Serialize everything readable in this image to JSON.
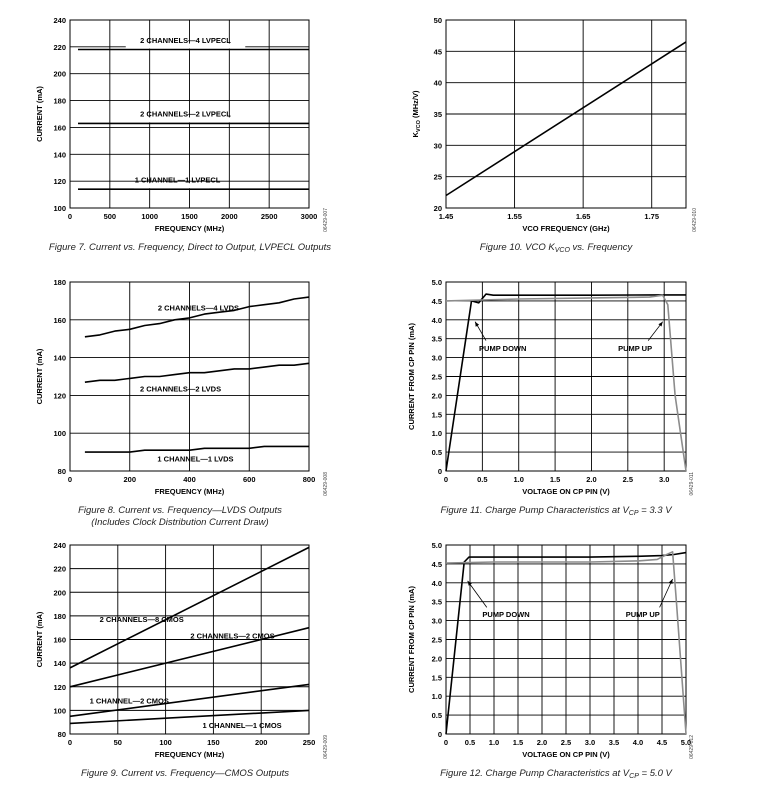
{
  "chart_data": [
    {
      "type": "line",
      "title": "Figure 7. Current vs. Frequency, Direct to Output, LVPECL Outputs",
      "xlabel": "FREQUENCY (MHz)",
      "ylabel": "CURRENT (mA)",
      "xlim": [
        0,
        3000
      ],
      "ylim": [
        100,
        240
      ],
      "xticks": [
        "0",
        "500",
        "1000",
        "1500",
        "2000",
        "2500",
        "3000"
      ],
      "yticks": [
        "100",
        "120",
        "140",
        "160",
        "180",
        "200",
        "220",
        "240"
      ],
      "code": "06429-007",
      "series": [
        {
          "name": "2 CHANNELS—4 LVPECL",
          "x": [
            100,
            3000
          ],
          "y": [
            218,
            218
          ],
          "color": "#000000"
        },
        {
          "name": "2 CHANNELS—2 LVPECL",
          "x": [
            100,
            3000
          ],
          "y": [
            163,
            163
          ],
          "color": "#000000"
        },
        {
          "name": "1 CHANNEL—1 LVPECL",
          "x": [
            100,
            3000
          ],
          "y": [
            114,
            114
          ],
          "color": "#000000"
        }
      ]
    },
    {
      "type": "line",
      "title": "Figure 10. VCO K",
      "title_sub": "VCO",
      "title_tail": " vs. Frequency",
      "xlabel": "VCO FREQUENCY (GHz)",
      "ylabel": "K",
      "ylabel_sub": "VCO",
      "ylabel_tail": " (MHz/V)",
      "xlim": [
        1.45,
        1.8
      ],
      "ylim": [
        20,
        50
      ],
      "xticks": [
        "1.45",
        "1.55",
        "1.65",
        "1.75"
      ],
      "yticks": [
        "20",
        "25",
        "30",
        "35",
        "40",
        "45",
        "50"
      ],
      "code": "06429-010",
      "series": [
        {
          "name": "KVCO",
          "x": [
            1.45,
            1.8
          ],
          "y": [
            22,
            46.5
          ],
          "color": "#000000"
        }
      ]
    },
    {
      "type": "line",
      "title": "Figure 8. Current vs. Frequency—LVDS Outputs",
      "title2": "(Includes Clock Distribution Current Draw)",
      "xlabel": "FREQUENCY (MHz)",
      "ylabel": "CURRENT (mA)",
      "xlim": [
        0,
        800
      ],
      "ylim": [
        80,
        180
      ],
      "xticks": [
        "0",
        "200",
        "400",
        "600",
        "800"
      ],
      "yticks": [
        "80",
        "100",
        "120",
        "140",
        "160",
        "180"
      ],
      "code": "06429-008",
      "series": [
        {
          "name": "2 CHANNELS—4 LVDS",
          "x": [
            50,
            100,
            150,
            200,
            250,
            300,
            350,
            400,
            450,
            500,
            550,
            600,
            650,
            700,
            750,
            800
          ],
          "y": [
            151,
            152,
            154,
            155,
            157,
            158,
            160,
            161,
            163,
            164,
            165,
            167,
            168,
            169,
            171,
            172
          ],
          "color": "#000000"
        },
        {
          "name": "2 CHANNELS—2 LVDS",
          "x": [
            50,
            100,
            150,
            200,
            250,
            300,
            350,
            400,
            450,
            500,
            550,
            600,
            650,
            700,
            750,
            800
          ],
          "y": [
            127,
            128,
            128,
            129,
            130,
            130,
            131,
            132,
            132,
            133,
            134,
            134,
            135,
            136,
            136,
            137
          ],
          "color": "#000000"
        },
        {
          "name": "1 CHANNEL—1 LVDS",
          "x": [
            50,
            100,
            150,
            200,
            250,
            300,
            350,
            400,
            450,
            500,
            550,
            600,
            650,
            700,
            750,
            800
          ],
          "y": [
            90,
            90,
            90,
            90,
            91,
            91,
            91,
            91,
            92,
            92,
            92,
            92,
            93,
            93,
            93,
            93
          ],
          "color": "#000000"
        }
      ]
    },
    {
      "type": "line",
      "title": "Figure 11. Charge Pump Characteristics at V",
      "title_sub": "CP",
      "title_tail": " = 3.3 V",
      "xlabel": "VOLTAGE ON CP PIN (V)",
      "ylabel": "CURRENT FROM CP PIN (mA)",
      "xlim": [
        0,
        3.3
      ],
      "ylim": [
        0,
        5.0
      ],
      "xticks": [
        "0",
        "0.5",
        "1.0",
        "1.5",
        "2.0",
        "2.5",
        "3.0"
      ],
      "yticks": [
        "0",
        "0.5",
        "1.0",
        "1.5",
        "2.0",
        "2.5",
        "3.0",
        "3.5",
        "4.0",
        "4.5",
        "5.0"
      ],
      "code": "06429-011",
      "annotations": [
        "PUMP DOWN",
        "PUMP UP"
      ],
      "series": [
        {
          "name": "PUMP DOWN",
          "x": [
            0,
            0.35,
            0.45,
            0.55,
            0.65,
            1.0,
            2.0,
            2.9,
            3.3
          ],
          "y": [
            0,
            4.5,
            4.45,
            4.68,
            4.65,
            4.65,
            4.65,
            4.66,
            4.66
          ],
          "color": "#000000"
        },
        {
          "name": "PUMP UP",
          "x": [
            0,
            1.0,
            2.0,
            2.8,
            2.98,
            3.05,
            3.15,
            3.3
          ],
          "y": [
            4.5,
            4.55,
            4.58,
            4.6,
            4.65,
            4.4,
            2.0,
            0
          ],
          "color": "#8c8c8c"
        }
      ]
    },
    {
      "type": "line",
      "title": "Figure 9. Current vs. Frequency—CMOS Outputs",
      "xlabel": "FREQUENCY (MHz)",
      "ylabel": "CURRENT (mA)",
      "xlim": [
        0,
        250
      ],
      "ylim": [
        80,
        240
      ],
      "xticks": [
        "0",
        "50",
        "100",
        "150",
        "200",
        "250"
      ],
      "yticks": [
        "80",
        "100",
        "120",
        "140",
        "160",
        "180",
        "200",
        "220",
        "240"
      ],
      "code": "06429-009",
      "series": [
        {
          "name": "2 CHANNELS—8 CMOS",
          "x": [
            0,
            250
          ],
          "y": [
            136,
            238
          ],
          "color": "#000000"
        },
        {
          "name": "2 CHANNELS—2 CMOS",
          "x": [
            0,
            250
          ],
          "y": [
            120,
            170
          ],
          "color": "#000000"
        },
        {
          "name": "1 CHANNEL—2 CMOS",
          "x": [
            0,
            250
          ],
          "y": [
            95,
            122
          ],
          "color": "#000000"
        },
        {
          "name": "1 CHANNEL—1 CMOS",
          "x": [
            0,
            250
          ],
          "y": [
            89,
            100
          ],
          "color": "#000000"
        }
      ]
    },
    {
      "type": "line",
      "title": "Figure 12. Charge Pump Characteristics at V",
      "title_sub": "CP",
      "title_tail": " = 5.0 V",
      "xlabel": "VOLTAGE ON CP PIN (V)",
      "ylabel": "CURRENT FROM CP PIN (mA)",
      "xlim": [
        0,
        5.0
      ],
      "ylim": [
        0,
        5.0
      ],
      "xticks": [
        "0",
        "0.5",
        "1.0",
        "1.5",
        "2.0",
        "2.5",
        "3.0",
        "3.5",
        "4.0",
        "4.5",
        "5.0"
      ],
      "yticks": [
        "0",
        "0.5",
        "1.0",
        "1.5",
        "2.0",
        "2.5",
        "3.0",
        "3.5",
        "4.0",
        "4.5",
        "5.0"
      ],
      "code": "06429-012",
      "annotations": [
        "PUMP DOWN",
        "PUMP UP"
      ],
      "series": [
        {
          "name": "PUMP DOWN",
          "x": [
            0,
            0.38,
            0.48,
            1.0,
            2.0,
            3.0,
            4.0,
            4.5,
            4.75,
            5.0
          ],
          "y": [
            0,
            4.55,
            4.68,
            4.68,
            4.68,
            4.68,
            4.7,
            4.72,
            4.75,
            4.8
          ],
          "color": "#000000"
        },
        {
          "name": "PUMP UP",
          "x": [
            0,
            1.0,
            2.0,
            3.0,
            4.0,
            4.4,
            4.6,
            4.72,
            4.8,
            5.0
          ],
          "y": [
            4.52,
            4.55,
            4.55,
            4.55,
            4.58,
            4.62,
            4.75,
            4.82,
            3.5,
            0
          ],
          "color": "#8c8c8c"
        }
      ]
    }
  ]
}
